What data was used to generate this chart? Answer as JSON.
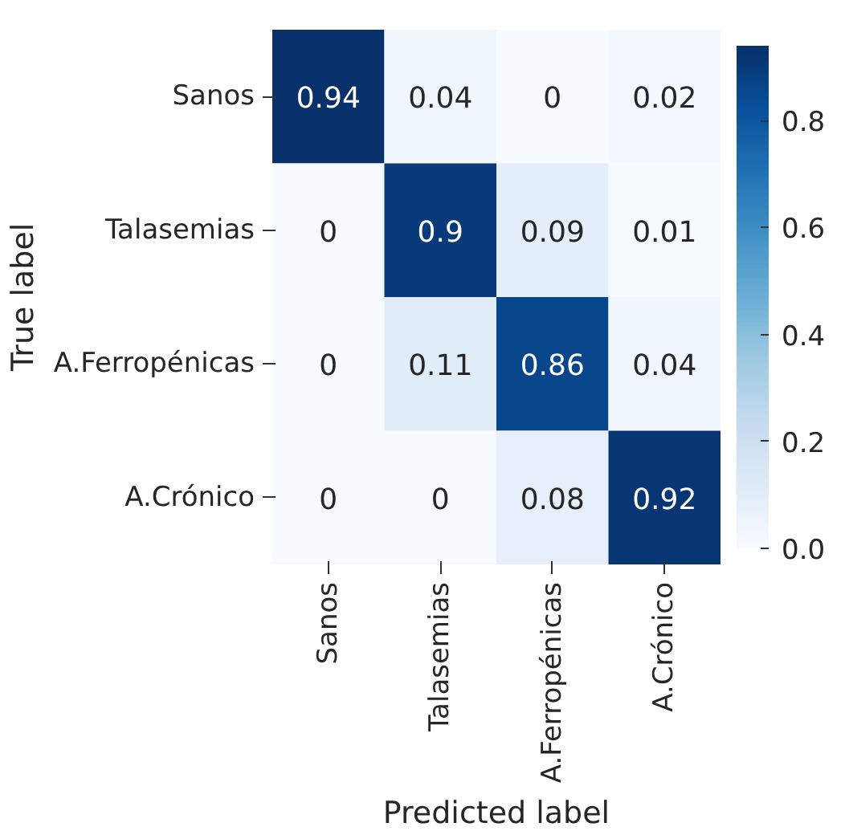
{
  "chart_data": {
    "type": "heatmap",
    "xlabel": "Predicted label",
    "ylabel": "True label",
    "categories": [
      "Sanos",
      "Talasemias",
      "A.Ferropénicas",
      "A.Crónico"
    ],
    "y_categories": [
      "Sanos",
      "Talasemias",
      "A.Ferropénicas",
      "A.Crónico"
    ],
    "cells": [
      [
        0.94,
        0.04,
        0,
        0.02
      ],
      [
        0,
        0.9,
        0.09,
        0.01
      ],
      [
        0,
        0.11,
        0.86,
        0.04
      ],
      [
        0,
        0,
        0.08,
        0.92
      ]
    ],
    "data_labels": true,
    "clim": [
      0,
      0.94
    ],
    "cticks": [
      {
        "value": 0,
        "label": "0.0"
      },
      {
        "value": 0.2,
        "label": "0.2"
      },
      {
        "value": 0.4,
        "label": "0.4"
      },
      {
        "value": 0.6,
        "label": "0.6"
      },
      {
        "value": 0.8,
        "label": "0.8"
      }
    ]
  }
}
